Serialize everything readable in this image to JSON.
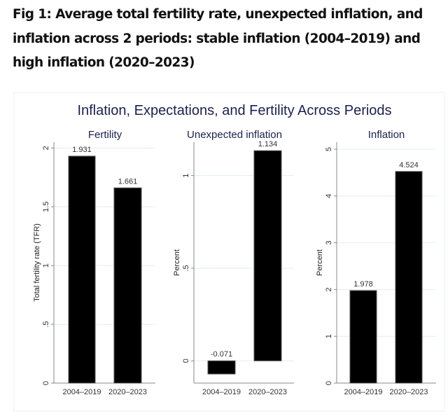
{
  "caption": "Fig 1: Average total fertility rate, unexpected inflation, and inflation across 2 periods: stable inflation (2004–2019) and high inflation (2020–2023)",
  "chart_title": "Inflation, Expectations, and Fertility Across Periods",
  "chart_data": [
    {
      "type": "bar",
      "title": "Fertility",
      "categories": [
        "2004–2019",
        "2020–2023"
      ],
      "values": [
        1.931,
        1.661
      ],
      "value_labels": [
        "1.931",
        "1.661"
      ],
      "ylabel": "Total fertility rate (TFR)",
      "ylim": [
        0,
        2.05
      ],
      "yticks": [
        0,
        0.5,
        1,
        1.5,
        2
      ],
      "ytick_labels": [
        "0",
        ".5",
        "1",
        "1.5",
        "2"
      ],
      "bar_color": "#000000",
      "grid": true
    },
    {
      "type": "bar",
      "title": "Unexpected inflation",
      "categories": [
        "2004–2019",
        "2020–2023"
      ],
      "values": [
        -0.071,
        1.134
      ],
      "value_labels": [
        "-0.071",
        "1.134"
      ],
      "ylabel": "Percent",
      "ylim": [
        -0.12,
        1.18
      ],
      "yticks": [
        0,
        0.5,
        1
      ],
      "ytick_labels": [
        "0",
        ".5",
        "1"
      ],
      "bar_color": "#000000",
      "grid": true
    },
    {
      "type": "bar",
      "title": "Inflation",
      "categories": [
        "2004–2019",
        "2020–2023"
      ],
      "values": [
        1.978,
        4.524
      ],
      "value_labels": [
        "1.978",
        "4.524"
      ],
      "ylabel": "Percent",
      "ylim": [
        0,
        5.15
      ],
      "yticks": [
        0,
        1,
        2,
        3,
        4,
        5
      ],
      "ytick_labels": [
        "0",
        "1",
        "2",
        "3",
        "4",
        "5"
      ],
      "bar_color": "#000000",
      "grid": true
    }
  ]
}
